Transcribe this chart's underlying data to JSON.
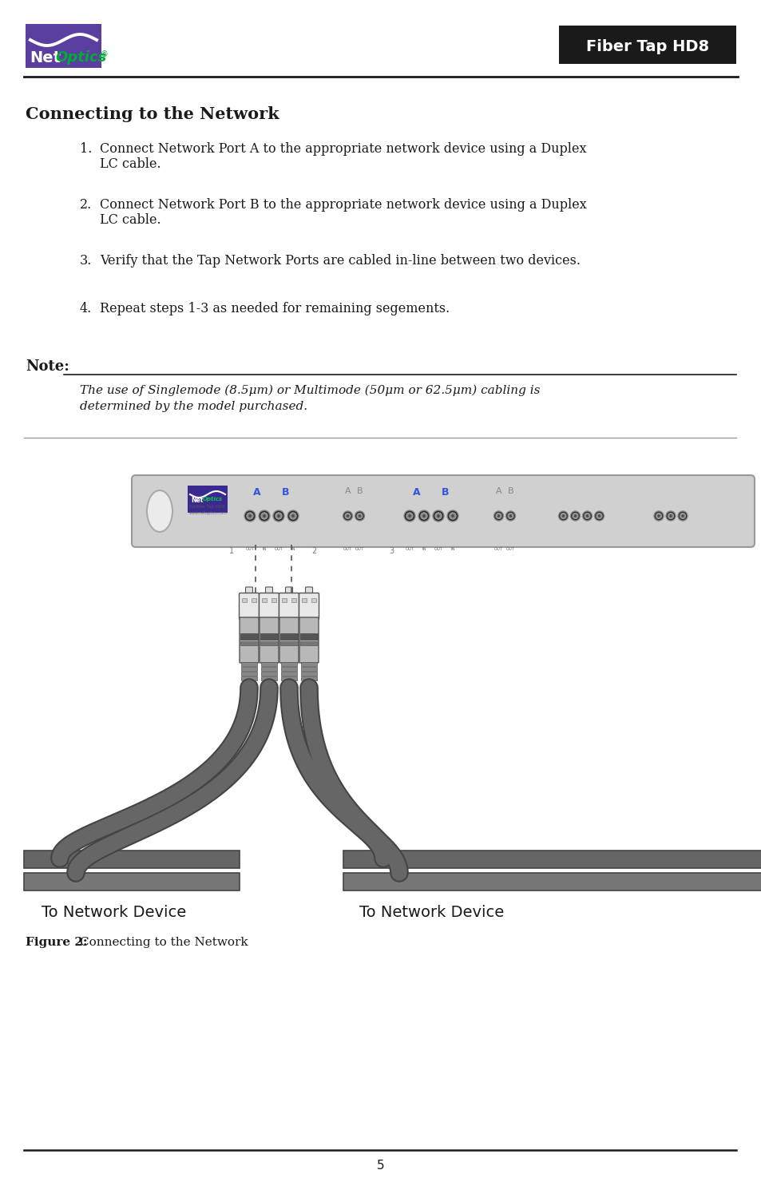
{
  "bg_color": "#ffffff",
  "header_logo_bg": "#5b3fa0",
  "header_title_bg": "#1a1a1a",
  "header_title_text": "Fiber Tap HD8",
  "header_title_color": "#ffffff",
  "section_title": "Connecting to the Network",
  "items": [
    [
      "1.",
      "Connect Network Port A to the appropriate network device using a Duplex",
      "LC cable."
    ],
    [
      "2.",
      "Connect Network Port B to the appropriate network device using a Duplex",
      "LC cable."
    ],
    [
      "3.",
      "Verify that the Tap Network Ports are cabled in-line between two devices.",
      ""
    ],
    [
      "4.",
      "Repeat steps 1-3 as needed for remaining segements.",
      ""
    ]
  ],
  "note_label": "Note:",
  "note_line1": "The use of Singlemode (8.5μm) or Multimode (50μm or 62.5μm) cabling is",
  "note_line2": "determined by the model purchased.",
  "figure_label": "Figure 2:",
  "figure_caption": "Connecting to the Network",
  "label_left": "To Network Device",
  "label_right": "To Network Device",
  "page_number": "5"
}
